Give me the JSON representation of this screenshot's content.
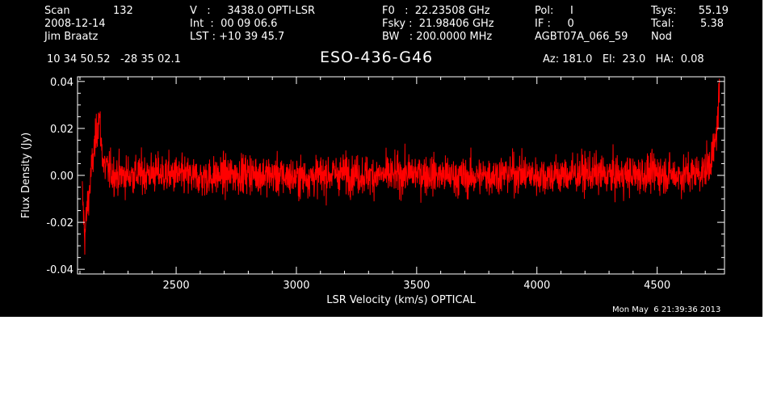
{
  "header": {
    "col1": [
      "Scan",
      "2008-12-14",
      "Jim Braatz"
    ],
    "scan_number": "132",
    "col2": [
      "V   :     3438.0 OPTI-LSR",
      "Int  :  00 09 06.6",
      "LST : +10 39 45.7"
    ],
    "col3": [
      "F0   :  22.23508 GHz",
      "Fsky :  21.98406 GHz",
      "BW   : 200.0000 MHz"
    ],
    "col4": [
      "Pol:     I",
      "IF :     0",
      "AGBT07A_066_59"
    ],
    "col5_labels": [
      "Tsys:",
      "Tcal:",
      "Nod"
    ],
    "col5_values": [
      "55.19",
      "5.38",
      ""
    ],
    "coords": "10 34 50.52   -28 35 02.1",
    "source": "ESO-436-G46",
    "pointing": "Az: 181.0   El:  23.0   HA:  0.08",
    "timestamp": "Mon May  6 21:39:36 2013"
  },
  "colors": {
    "background": "#000000",
    "axes": "#ffffff",
    "trace": "#ff0000"
  },
  "chart_data": {
    "type": "line",
    "xlabel": "LSR Velocity (km/s) OPTICAL",
    "ylabel": "Flux Density (Jy)",
    "xlim": [
      2090,
      4780
    ],
    "ylim": [
      -0.042,
      0.042
    ],
    "xticks": [
      2500,
      3000,
      3500,
      4000,
      4500
    ],
    "yticks": [
      -0.04,
      -0.02,
      0.0,
      0.02,
      0.04
    ],
    "ytick_labels": [
      "-0.04",
      "-0.02",
      "0.00",
      "0.02",
      "0.04"
    ],
    "grid": false,
    "series": [
      {
        "color": "#ff0000",
        "x": [
          2110,
          2120,
          2130,
          2140,
          2150,
          2165,
          2180,
          2190,
          2200,
          2220,
          2250,
          2300,
          2400,
          2500,
          2600,
          2700,
          2800,
          2900,
          3000,
          3100,
          3200,
          3300,
          3400,
          3500,
          3600,
          3700,
          3800,
          3900,
          4000,
          4100,
          4200,
          4300,
          4400,
          4500,
          4600,
          4650,
          4700,
          4720,
          4740,
          4750,
          4760
        ],
        "y": [
          -0.008,
          -0.026,
          -0.014,
          -0.006,
          0.004,
          0.015,
          0.026,
          0.012,
          0.004,
          0.002,
          0.0,
          0.0,
          0.001,
          0.0,
          -0.001,
          0.0,
          0.001,
          0.0,
          -0.001,
          0.0,
          0.001,
          0.0,
          0.0,
          0.001,
          0.0,
          -0.001,
          0.0,
          0.001,
          0.0,
          0.0,
          0.001,
          0.0,
          0.0,
          0.001,
          0.0,
          0.001,
          0.002,
          0.006,
          0.012,
          0.022,
          0.038
        ],
        "noise_rms": 0.0075
      }
    ]
  }
}
